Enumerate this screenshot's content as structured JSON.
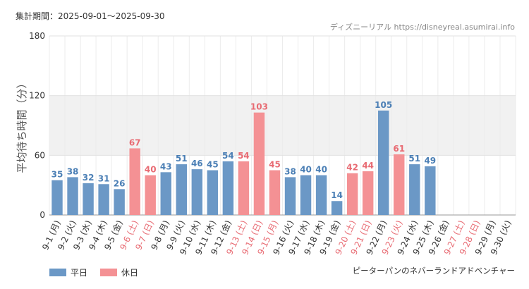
{
  "header": {
    "period": "集計期間：2025-09-01～2025-09-30",
    "source": "ディズニーリアル https://disneyreal.asumirai.info"
  },
  "footer": {
    "facility": "ピーターパンのネバーランドアドベンチャー"
  },
  "colors": {
    "weekday": "#6b98c6",
    "holiday": "#f49194",
    "weekday_label": "#4b7fb5",
    "holiday_label": "#e86b73",
    "band": "#f1f1f1",
    "axis_text": "#333333"
  },
  "chart_data": {
    "type": "bar",
    "title": "",
    "xlabel": "",
    "ylabel": "平均待ち時間（分）",
    "ylim": [
      0,
      180
    ],
    "yticks": [
      0,
      60,
      120,
      180
    ],
    "grid": true,
    "legend_position": "bottom-left",
    "series": [
      {
        "name": "平日",
        "key": "weekday"
      },
      {
        "name": "休日",
        "key": "holiday"
      }
    ],
    "categories": [
      "9-1 (月)",
      "9-2 (火)",
      "9-3 (水)",
      "9-4 (木)",
      "9-5 (金)",
      "9-6 (土)",
      "9-7 (日)",
      "9-8 (月)",
      "9-9 (火)",
      "9-10 (水)",
      "9-11 (木)",
      "9-12 (金)",
      "9-13 (土)",
      "9-14 (日)",
      "9-15 (月)",
      "9-16 (火)",
      "9-17 (水)",
      "9-18 (木)",
      "9-19 (金)",
      "9-20 (土)",
      "9-21 (日)",
      "9-22 (月)",
      "9-23 (火)",
      "9-24 (水)",
      "9-25 (木)",
      "9-26 (金)",
      "9-27 (土)",
      "9-28 (日)",
      "9-29 (月)",
      "9-30 (火)"
    ],
    "values": [
      35,
      38,
      32,
      31,
      26,
      67,
      40,
      43,
      51,
      46,
      45,
      54,
      54,
      103,
      45,
      38,
      40,
      40,
      14,
      42,
      44,
      105,
      61,
      51,
      49,
      null,
      null,
      null,
      null,
      null
    ],
    "day_type": [
      "weekday",
      "weekday",
      "weekday",
      "weekday",
      "weekday",
      "holiday",
      "holiday",
      "weekday",
      "weekday",
      "weekday",
      "weekday",
      "weekday",
      "holiday",
      "holiday",
      "holiday",
      "weekday",
      "weekday",
      "weekday",
      "weekday",
      "holiday",
      "holiday",
      "weekday",
      "holiday",
      "weekday",
      "weekday",
      "weekday",
      "holiday",
      "holiday",
      "weekday",
      "weekday"
    ]
  }
}
